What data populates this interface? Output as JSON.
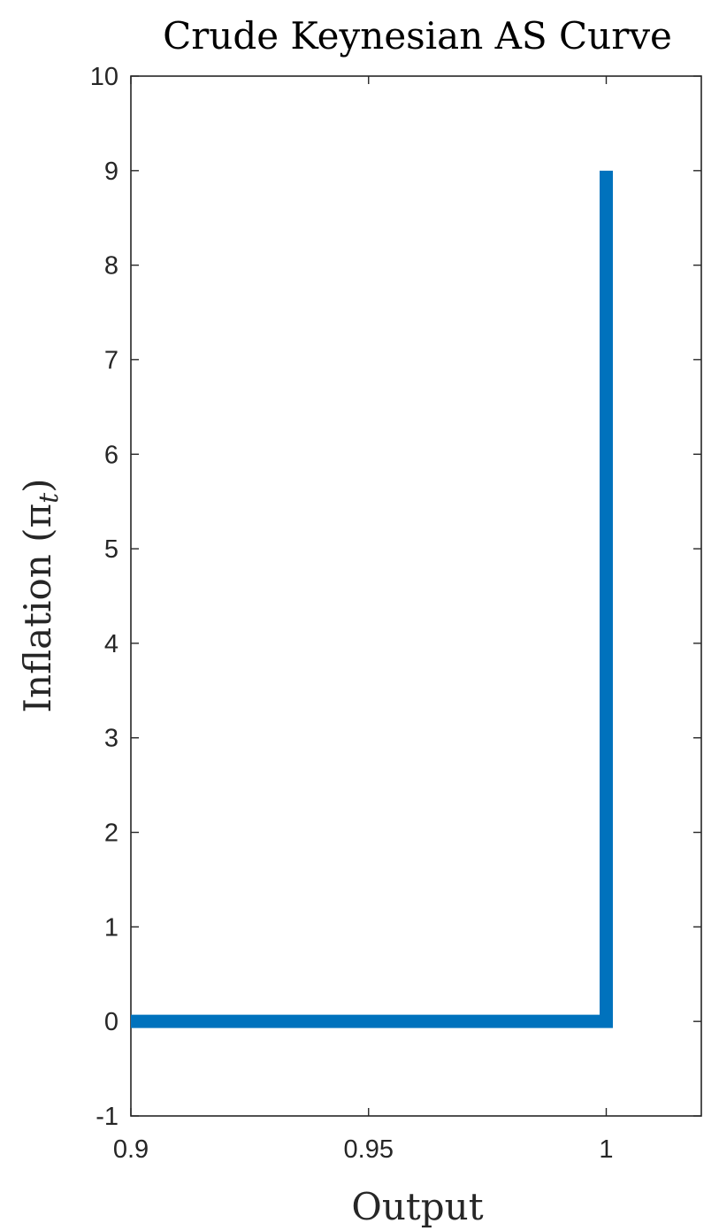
{
  "chart_data": {
    "type": "line",
    "title": "Crude Keynesian AS Curve",
    "xlabel": "Output",
    "ylabel": "Inflation (π",
    "ylabel_subscript": "t",
    "ylabel_close": ")",
    "xlim": [
      0.9,
      1.02
    ],
    "ylim": [
      -1,
      10
    ],
    "x_ticks": [
      0.9,
      0.95,
      1
    ],
    "x_tick_labels": [
      "0.9",
      "0.95",
      "1"
    ],
    "y_ticks": [
      -1,
      0,
      1,
      2,
      3,
      4,
      5,
      6,
      7,
      8,
      9,
      10
    ],
    "y_tick_labels": [
      "-1",
      "0",
      "1",
      "2",
      "3",
      "4",
      "5",
      "6",
      "7",
      "8",
      "9",
      "10"
    ],
    "grid": false,
    "series": [
      {
        "color": "#0072BD",
        "x": [
          0.9,
          1.0,
          1.0
        ],
        "y": [
          0,
          0,
          9
        ]
      }
    ]
  }
}
